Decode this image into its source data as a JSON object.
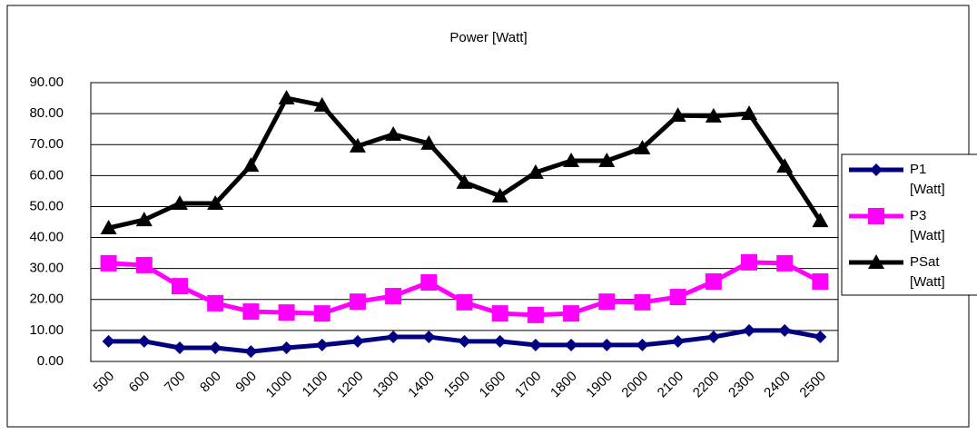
{
  "chart_data": {
    "type": "line",
    "title": "Power [Watt]",
    "categories": [
      "500",
      "600",
      "700",
      "800",
      "900",
      "1000",
      "1100",
      "1200",
      "1300",
      "1400",
      "1500",
      "1600",
      "1700",
      "1800",
      "1900",
      "2000",
      "2100",
      "2200",
      "2300",
      "2400",
      "2500"
    ],
    "series": [
      {
        "name": "P1 [Watt]",
        "color": "#000080",
        "marker": "diamond",
        "values": [
          6.5,
          6.5,
          4.4,
          4.4,
          3.2,
          4.4,
          5.3,
          6.5,
          7.9,
          7.9,
          6.5,
          6.5,
          5.3,
          5.3,
          5.3,
          5.3,
          6.5,
          7.9,
          10,
          10,
          7.9
        ]
      },
      {
        "name": "P3 [Watt]",
        "color": "#ff00ff",
        "marker": "square",
        "values": [
          31.7,
          31.1,
          24.3,
          18.8,
          16.1,
          15.8,
          15.5,
          19.3,
          21.1,
          25.5,
          19.1,
          15.5,
          15,
          15.5,
          19.3,
          19.1,
          20.8,
          25.8,
          32,
          31.7,
          25.8
        ]
      },
      {
        "name": "PSat [Watt]",
        "color": "#000000",
        "marker": "triangle",
        "values": [
          43.1,
          45.7,
          51,
          51,
          63.3,
          85,
          82.7,
          69.5,
          73.3,
          70.4,
          57.8,
          53.4,
          61,
          64.8,
          64.8,
          68.9,
          79.4,
          79.2,
          80,
          63,
          45.4
        ]
      }
    ],
    "ylim": [
      0,
      90
    ],
    "yticks": [
      {
        "value": 0,
        "label": "0.00"
      },
      {
        "value": 10,
        "label": "10.00"
      },
      {
        "value": 20,
        "label": "20.00"
      },
      {
        "value": 30,
        "label": "30.00"
      },
      {
        "value": 40,
        "label": "40.00"
      },
      {
        "value": 50,
        "label": "50.00"
      },
      {
        "value": 60,
        "label": "60.00"
      },
      {
        "value": 70,
        "label": "70.00"
      },
      {
        "value": 80,
        "label": "80.00"
      },
      {
        "value": 90,
        "label": "90.00"
      }
    ],
    "grid": true,
    "legend": "right"
  }
}
